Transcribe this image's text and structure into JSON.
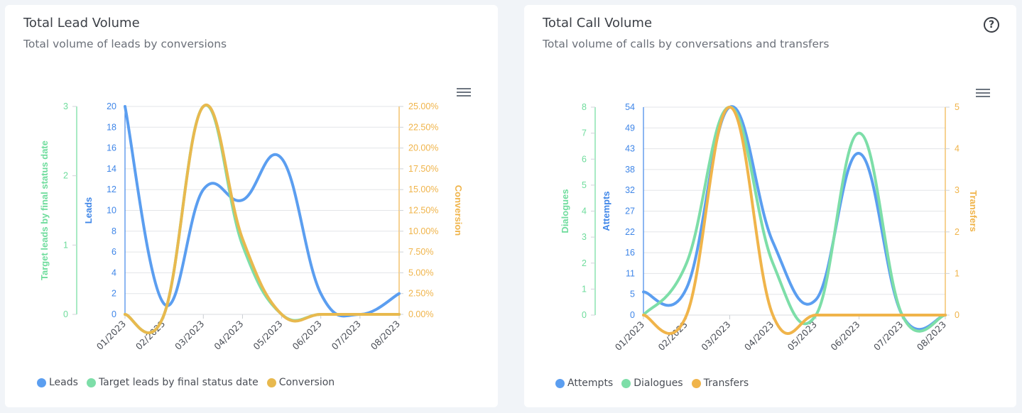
{
  "colors": {
    "blue": "#5b9ef0",
    "green": "#7ddea8",
    "orange": "#e8b94e",
    "orange_axis": "#f0b44a",
    "green_axis": "#6edc9c",
    "blue_axis": "#3f86e8"
  },
  "cards": [
    {
      "title": "Total Lead Volume",
      "subtitle": "Total volume of leads by conversions",
      "menu_icon": "hamburger-menu-icon"
    },
    {
      "title": "Total Call Volume",
      "subtitle": "Total volume of calls by conversations and transfers",
      "help_icon": "?",
      "menu_icon": "hamburger-menu-icon"
    }
  ],
  "chart_data": [
    {
      "type": "line",
      "title": "Total Lead Volume",
      "subtitle": "Total volume of leads by conversions",
      "categories": [
        "01/2023",
        "02/2023",
        "03/2023",
        "04/2023",
        "05/2023",
        "06/2023",
        "07/2023",
        "08/2023"
      ],
      "series": [
        {
          "name": "Leads",
          "axis": "Leads",
          "color": "#5b9ef0",
          "values": [
            20,
            1,
            12,
            11,
            15,
            2,
            0,
            2
          ]
        },
        {
          "name": "Target leads by final status date",
          "axis": "Target leads by final status date",
          "color": "#7ddea8",
          "values": [
            0,
            0,
            3,
            1,
            0,
            0,
            0,
            0
          ]
        },
        {
          "name": "Conversion",
          "axis": "Conversion",
          "color": "#e8b94e",
          "values": [
            0,
            0,
            25,
            9.09,
            0,
            0,
            0,
            0
          ]
        }
      ],
      "axes": [
        {
          "label": "Target leads by final status date",
          "side": "left-outer",
          "range": [
            0,
            3
          ],
          "ticks": [
            "0",
            "1",
            "2",
            "3"
          ],
          "color": "#6edc9c"
        },
        {
          "label": "Leads",
          "side": "left-inner",
          "range": [
            0,
            20
          ],
          "ticks": [
            "0",
            "2",
            "4",
            "6",
            "8",
            "10",
            "12",
            "14",
            "16",
            "18",
            "20"
          ],
          "color": "#3f86e8"
        },
        {
          "label": "Conversion",
          "side": "right",
          "range": [
            0,
            25
          ],
          "ticks": [
            "0.00%",
            "2.50%",
            "5.00%",
            "7.50%",
            "10.00%",
            "12.50%",
            "15.00%",
            "17.50%",
            "20.00%",
            "22.50%",
            "25.00%"
          ],
          "color": "#f0b44a"
        }
      ],
      "grid": true,
      "legend": {
        "placement": "bottom-left",
        "items": [
          "Leads",
          "Target leads by final status date",
          "Conversion"
        ]
      }
    },
    {
      "type": "line",
      "title": "Total Call Volume",
      "subtitle": "Total volume of calls by conversations and transfers",
      "categories": [
        "01/2023",
        "02/2023",
        "03/2023",
        "04/2023",
        "05/2023",
        "06/2023",
        "07/2023",
        "08/2023"
      ],
      "series": [
        {
          "name": "Attempts",
          "axis": "Attempts",
          "color": "#5b9ef0",
          "values": [
            6,
            7,
            54,
            19,
            4,
            42,
            0,
            0
          ]
        },
        {
          "name": "Dialogues",
          "axis": "Dialogues",
          "color": "#7ddea8",
          "values": [
            0,
            2,
            8,
            2,
            0,
            7,
            0,
            0
          ]
        },
        {
          "name": "Transfers",
          "axis": "Transfers",
          "color": "#f0b44a",
          "values": [
            0,
            0,
            5,
            0,
            0,
            0,
            0,
            0
          ]
        }
      ],
      "axes": [
        {
          "label": "Dialogues",
          "side": "left-outer",
          "range": [
            0,
            8
          ],
          "ticks": [
            "0",
            "1",
            "2",
            "3",
            "4",
            "5",
            "6",
            "7",
            "8"
          ],
          "color": "#6edc9c"
        },
        {
          "label": "Attempts",
          "side": "left-inner",
          "range": [
            0,
            54
          ],
          "ticks": [
            "0",
            "5",
            "11",
            "16",
            "22",
            "27",
            "32",
            "38",
            "43",
            "49",
            "54"
          ],
          "color": "#3f86e8"
        },
        {
          "label": "Transfers",
          "side": "right",
          "range": [
            0,
            5
          ],
          "ticks": [
            "0",
            "1",
            "2",
            "3",
            "4",
            "5"
          ],
          "color": "#f0b44a"
        }
      ],
      "grid": true,
      "legend": {
        "placement": "bottom-left",
        "items": [
          "Attempts",
          "Dialogues",
          "Transfers"
        ]
      }
    }
  ]
}
